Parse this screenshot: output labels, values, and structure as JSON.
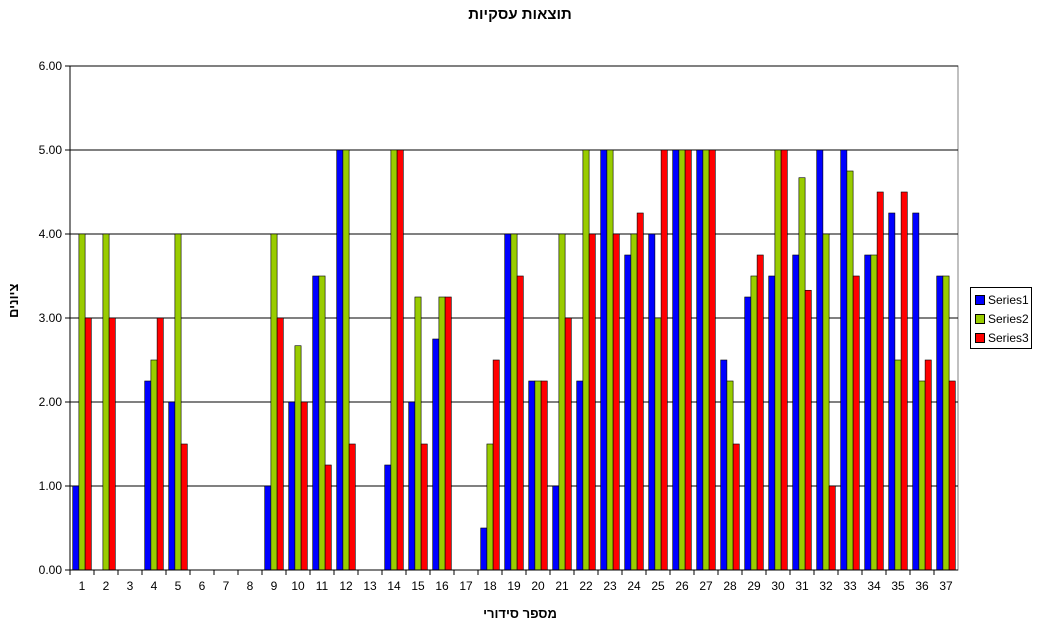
{
  "chart_data": {
    "type": "bar",
    "title": "תוצאות עסקיות",
    "xlabel": "מספר סידורי",
    "ylabel": "ציונים",
    "ylim": [
      0,
      6
    ],
    "yticks": [
      "0.00",
      "1.00",
      "2.00",
      "3.00",
      "4.00",
      "5.00",
      "6.00"
    ],
    "categories": [
      "1",
      "2",
      "3",
      "4",
      "5",
      "6",
      "7",
      "8",
      "9",
      "10",
      "11",
      "12",
      "13",
      "14",
      "15",
      "16",
      "17",
      "18",
      "19",
      "20",
      "21",
      "22",
      "23",
      "24",
      "25",
      "26",
      "27",
      "28",
      "29",
      "30",
      "31",
      "32",
      "33",
      "34",
      "35",
      "36",
      "37"
    ],
    "legend_position": "right",
    "grid": true,
    "series": [
      {
        "name": "Series1",
        "color": "#0000ff",
        "values": [
          1.0,
          0,
          0,
          2.25,
          2.0,
          0,
          0,
          0,
          1.0,
          2.0,
          3.5,
          5.0,
          0,
          1.25,
          2.0,
          2.75,
          0,
          0.5,
          4.0,
          2.25,
          1.0,
          2.25,
          5.0,
          3.75,
          4.0,
          5.0,
          5.0,
          2.5,
          3.25,
          3.5,
          3.75,
          5.0,
          5.0,
          3.75,
          4.25,
          4.25,
          3.5
        ]
      },
      {
        "name": "Series2",
        "color": "#99cc00",
        "values": [
          4.0,
          4.0,
          0,
          2.5,
          4.0,
          0,
          0,
          0,
          4.0,
          2.67,
          3.5,
          5.0,
          0,
          5.0,
          3.25,
          3.25,
          0,
          1.5,
          4.0,
          2.25,
          4.0,
          5.0,
          5.0,
          4.0,
          3.0,
          5.0,
          5.0,
          2.25,
          3.5,
          5.0,
          4.67,
          4.0,
          4.75,
          3.75,
          2.5,
          2.25,
          3.5
        ]
      },
      {
        "name": "Series3",
        "color": "#ff0000",
        "values": [
          3.0,
          3.0,
          0,
          3.0,
          1.5,
          0,
          0,
          0,
          3.0,
          2.0,
          1.25,
          1.5,
          0,
          5.0,
          1.5,
          3.25,
          0,
          2.5,
          3.5,
          2.25,
          3.0,
          4.0,
          4.0,
          4.25,
          5.0,
          5.0,
          5.0,
          1.5,
          3.75,
          5.0,
          3.33,
          1.0,
          3.5,
          4.5,
          4.5,
          2.5,
          2.25
        ]
      }
    ]
  }
}
